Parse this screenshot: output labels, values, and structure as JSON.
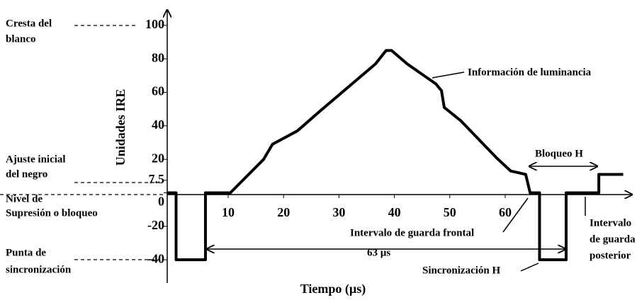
{
  "chart_data": {
    "type": "line",
    "x_label": "Tiempo (µs)",
    "y_label": "Unidades IRE",
    "xlim": [
      -1,
      82
    ],
    "ylim": [
      -45,
      105
    ],
    "xticks": [
      10,
      20,
      30,
      40,
      50,
      60
    ],
    "yticks": [
      100,
      80,
      60,
      40,
      20,
      7.5,
      0,
      -20,
      -40
    ],
    "series": [
      {
        "color": "#000000",
        "x": [
          -1,
          0.6,
          0.6,
          5.9,
          5.9,
          10.4,
          16.4,
          18,
          22.5,
          26.3,
          36.6,
          38.5,
          39.5,
          42.3,
          47.5,
          48.5,
          49,
          52,
          58.4,
          61,
          63.7,
          64.5,
          66.2,
          66.2,
          71,
          71,
          76.9,
          76.9,
          81.3
        ],
        "values": [
          0,
          0,
          -40,
          -40,
          0,
          0,
          20,
          29,
          37,
          48,
          77,
          85,
          85,
          77,
          65,
          61,
          51,
          43,
          21,
          13,
          11,
          0,
          0,
          -40,
          -40,
          0,
          0,
          11,
          11
        ]
      }
    ],
    "annotations": [
      {
        "lines": [
          "Cresta del",
          "blanco"
        ]
      },
      {
        "lines": [
          "Ajuste inicial",
          "del negro"
        ]
      },
      {
        "lines": [
          "Nivel de",
          "Supresión o bloqueo"
        ]
      },
      {
        "lines": [
          "Punta de",
          "sincronización"
        ]
      },
      {
        "lines": [
          "Información de luminancia"
        ]
      },
      {
        "lines": [
          "Bloqueo H"
        ]
      },
      {
        "lines": [
          "Intervalo de guarda frontal"
        ]
      },
      {
        "lines": [
          "63 µs"
        ]
      },
      {
        "lines": [
          "Sincronización H"
        ]
      },
      {
        "lines": [
          "Intervalo",
          "de guarda",
          "posterior"
        ]
      }
    ]
  }
}
